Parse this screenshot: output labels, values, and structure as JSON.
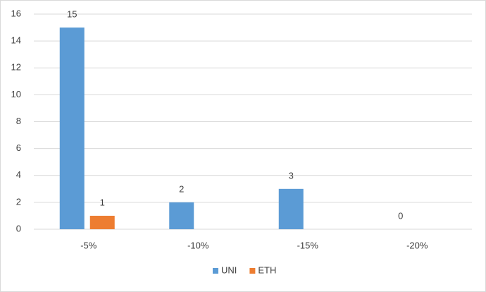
{
  "chart_data": {
    "type": "bar",
    "categories": [
      "-5%",
      "-10%",
      "-15%",
      "-20%"
    ],
    "series": [
      {
        "name": "UNI",
        "color": "#5b9bd5",
        "values": [
          15,
          2,
          3,
          0
        ]
      },
      {
        "name": "ETH",
        "color": "#ed7d31",
        "values": [
          1,
          null,
          null,
          null
        ]
      }
    ],
    "ylim": [
      0,
      16
    ],
    "yticks": [
      0,
      2,
      4,
      6,
      8,
      10,
      12,
      14,
      16
    ],
    "grid": true,
    "legend": "bottom"
  }
}
